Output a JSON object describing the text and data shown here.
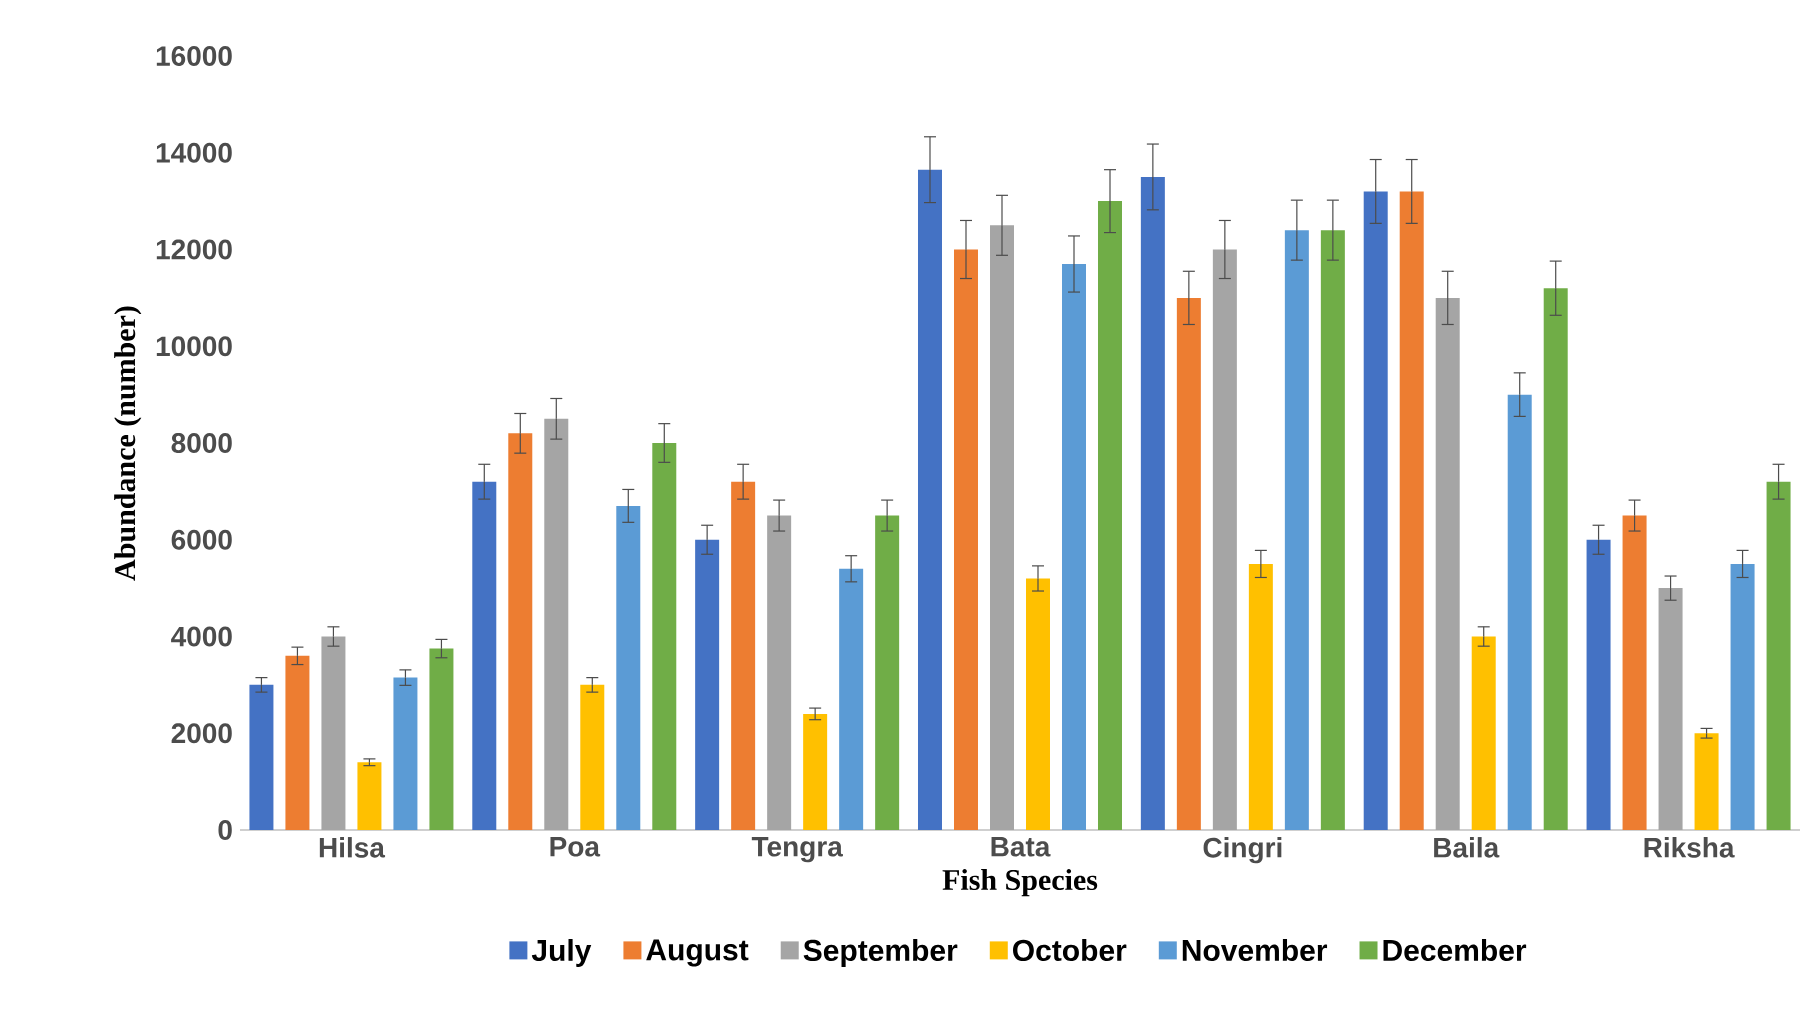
{
  "chart_data": {
    "type": "bar",
    "xlabel": "Fish Species",
    "ylabel": "Abundance (number)",
    "categories": [
      "Hilsa",
      "Poa",
      "Tengra",
      "Bata",
      "Cingri",
      "Baila",
      "Riksha"
    ],
    "ylim": [
      0,
      16000
    ],
    "yticks": [
      0,
      2000,
      4000,
      6000,
      8000,
      10000,
      12000,
      14000,
      16000
    ],
    "legend": "bottom",
    "series": [
      {
        "name": "July",
        "color": "#4472c4",
        "values": [
          3000,
          7200,
          6000,
          13650,
          13500,
          13200,
          6000
        ],
        "errors": [
          150,
          360,
          300,
          680,
          680,
          660,
          300
        ]
      },
      {
        "name": "August",
        "color": "#ed7d31",
        "values": [
          3600,
          8200,
          7200,
          12000,
          11000,
          13200,
          6500
        ],
        "errors": [
          180,
          410,
          360,
          600,
          550,
          660,
          320
        ]
      },
      {
        "name": "September",
        "color": "#a5a5a5",
        "values": [
          4000,
          8500,
          6500,
          12500,
          12000,
          11000,
          5000
        ],
        "errors": [
          200,
          420,
          320,
          620,
          600,
          550,
          250
        ]
      },
      {
        "name": "October",
        "color": "#ffc000",
        "values": [
          1400,
          3000,
          2400,
          5200,
          5500,
          4000,
          2000
        ],
        "errors": [
          70,
          150,
          120,
          260,
          280,
          200,
          100
        ]
      },
      {
        "name": "November",
        "color": "#5b9bd5",
        "values": [
          3150,
          6700,
          5400,
          11700,
          12400,
          9000,
          5500
        ],
        "errors": [
          160,
          340,
          270,
          580,
          620,
          450,
          280
        ]
      },
      {
        "name": "December",
        "color": "#70ad47",
        "values": [
          3750,
          8000,
          6500,
          13000,
          12400,
          11200,
          7200
        ],
        "errors": [
          190,
          400,
          320,
          650,
          620,
          560,
          360
        ]
      }
    ]
  }
}
